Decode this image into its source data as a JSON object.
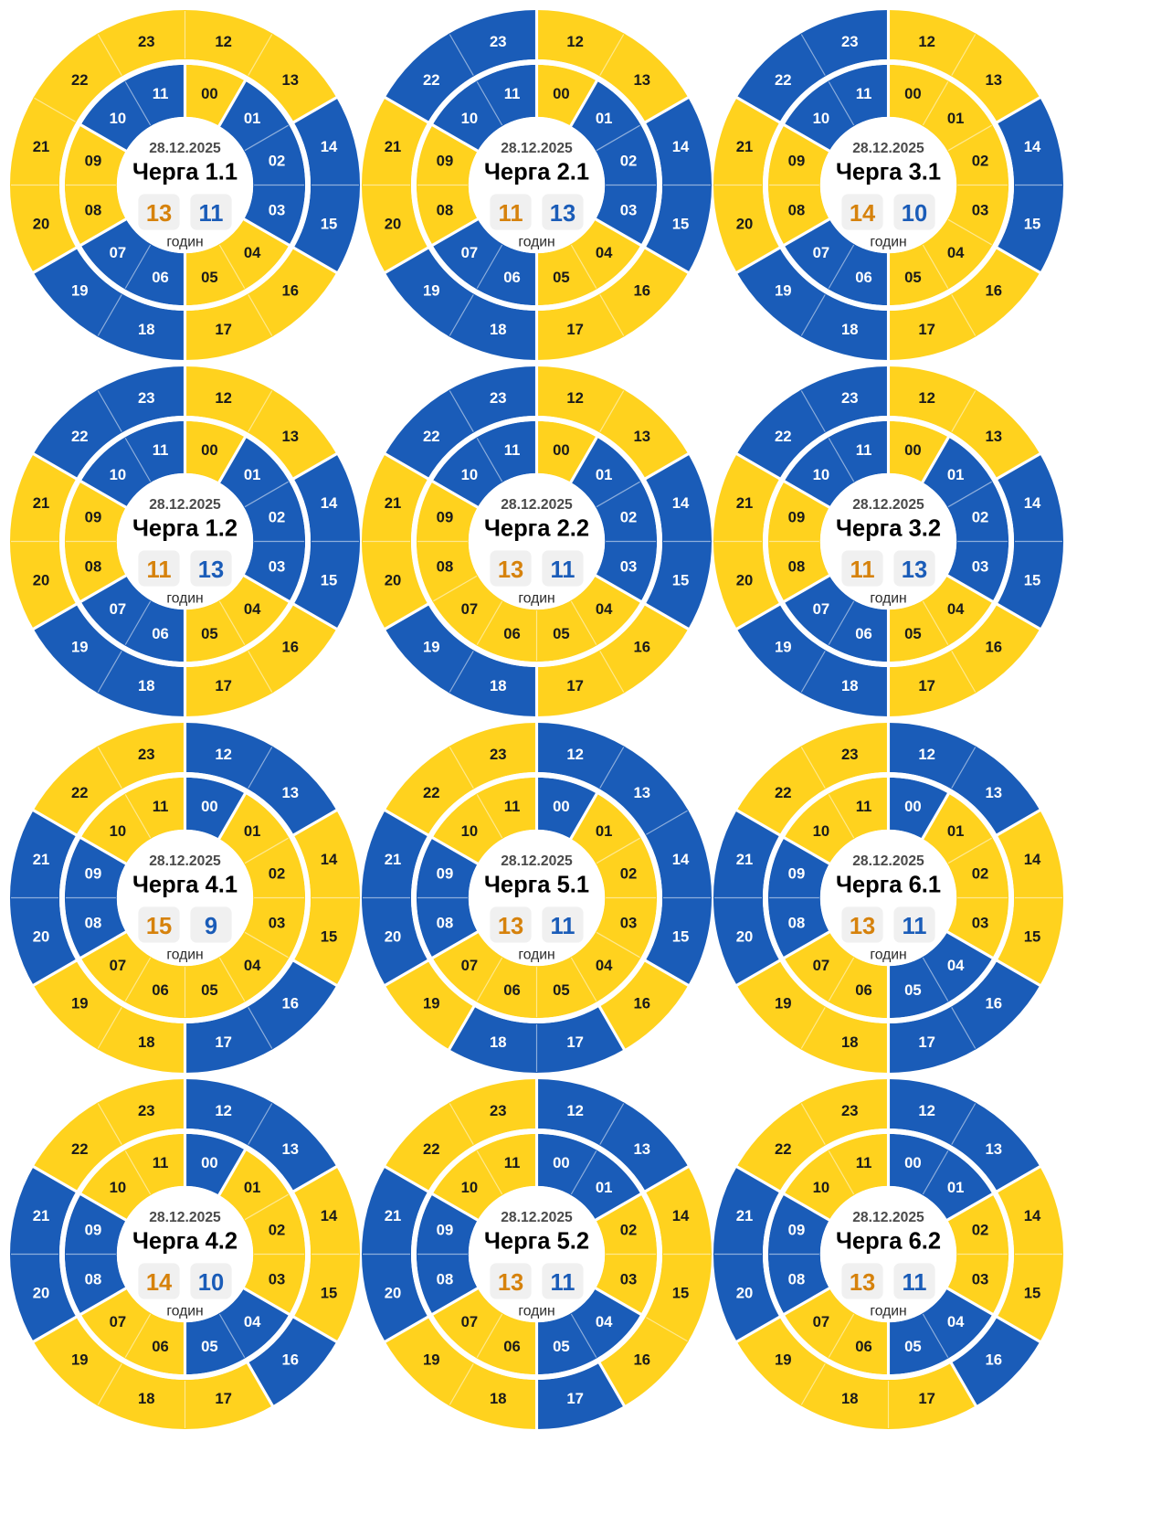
{
  "shared": {
    "date": "28.12.2025",
    "hours_word": "годин"
  },
  "colors": {
    "yellow_segment": "#ffd21e",
    "blue_segment": "#1a5cb8",
    "label_on_yellow": "#1a1a1a",
    "label_on_blue": "#ffffff",
    "date_text": "#4a4a4a",
    "title_text": "#000000",
    "badge_background": "#f0f0f0",
    "yellow_count_text": "#d6820c",
    "blue_count_text": "#1a5cb8",
    "hours_word_text": "#2b2b2b",
    "divider_strong": "#ffffff",
    "divider_faint": "rgba(255,255,255,0.5)"
  },
  "chart_data": {
    "type": "pie",
    "subtype": "24h-ring-schedule-grid",
    "rings": {
      "inner_hours": "00-11",
      "outer_hours": "12-23"
    },
    "charts": [
      {
        "title": "Черга 1.1",
        "date": "28.12.2025",
        "yellow_hours": 13,
        "blue_hours": 11,
        "hours_word": "годин",
        "hours": [
          "yellow",
          "blue",
          "blue",
          "blue",
          "yellow",
          "yellow",
          "blue",
          "blue",
          "yellow",
          "yellow",
          "blue",
          "blue",
          "yellow",
          "yellow",
          "blue",
          "blue",
          "yellow",
          "yellow",
          "blue",
          "blue",
          "yellow",
          "yellow",
          "yellow",
          "yellow"
        ]
      },
      {
        "title": "Черга 2.1",
        "date": "28.12.2025",
        "yellow_hours": 11,
        "blue_hours": 13,
        "hours_word": "годин",
        "hours": [
          "yellow",
          "blue",
          "blue",
          "blue",
          "yellow",
          "yellow",
          "blue",
          "blue",
          "yellow",
          "yellow",
          "blue",
          "blue",
          "yellow",
          "yellow",
          "blue",
          "blue",
          "yellow",
          "yellow",
          "blue",
          "blue",
          "yellow",
          "yellow",
          "blue",
          "blue"
        ]
      },
      {
        "title": "Черга 3.1",
        "date": "28.12.2025",
        "yellow_hours": 14,
        "blue_hours": 10,
        "hours_word": "годин",
        "hours": [
          "yellow",
          "yellow",
          "yellow",
          "yellow",
          "yellow",
          "yellow",
          "blue",
          "blue",
          "yellow",
          "yellow",
          "blue",
          "blue",
          "yellow",
          "yellow",
          "blue",
          "blue",
          "yellow",
          "yellow",
          "blue",
          "blue",
          "yellow",
          "yellow",
          "blue",
          "blue"
        ]
      },
      {
        "title": "Черга 1.2",
        "date": "28.12.2025",
        "yellow_hours": 11,
        "blue_hours": 13,
        "hours_word": "годин",
        "hours": [
          "yellow",
          "blue",
          "blue",
          "blue",
          "yellow",
          "yellow",
          "blue",
          "blue",
          "yellow",
          "yellow",
          "blue",
          "blue",
          "yellow",
          "yellow",
          "blue",
          "blue",
          "yellow",
          "yellow",
          "blue",
          "blue",
          "yellow",
          "yellow",
          "blue",
          "blue"
        ]
      },
      {
        "title": "Черга 2.2",
        "date": "28.12.2025",
        "yellow_hours": 13,
        "blue_hours": 11,
        "hours_word": "годин",
        "hours": [
          "yellow",
          "blue",
          "blue",
          "blue",
          "yellow",
          "yellow",
          "yellow",
          "yellow",
          "yellow",
          "yellow",
          "blue",
          "blue",
          "yellow",
          "yellow",
          "blue",
          "blue",
          "yellow",
          "yellow",
          "blue",
          "blue",
          "yellow",
          "yellow",
          "blue",
          "blue"
        ]
      },
      {
        "title": "Черга 3.2",
        "date": "28.12.2025",
        "yellow_hours": 11,
        "blue_hours": 13,
        "hours_word": "годин",
        "hours": [
          "yellow",
          "blue",
          "blue",
          "blue",
          "yellow",
          "yellow",
          "blue",
          "blue",
          "yellow",
          "yellow",
          "blue",
          "blue",
          "yellow",
          "yellow",
          "blue",
          "blue",
          "yellow",
          "yellow",
          "blue",
          "blue",
          "yellow",
          "yellow",
          "blue",
          "blue"
        ]
      },
      {
        "title": "Черга 4.1",
        "date": "28.12.2025",
        "yellow_hours": 15,
        "blue_hours": 9,
        "hours_word": "годин",
        "hours": [
          "blue",
          "yellow",
          "yellow",
          "yellow",
          "yellow",
          "yellow",
          "yellow",
          "yellow",
          "blue",
          "blue",
          "yellow",
          "yellow",
          "blue",
          "blue",
          "yellow",
          "yellow",
          "blue",
          "blue",
          "yellow",
          "yellow",
          "blue",
          "blue",
          "yellow",
          "yellow"
        ]
      },
      {
        "title": "Черга 5.1",
        "date": "28.12.2025",
        "yellow_hours": 13,
        "blue_hours": 11,
        "hours_word": "годин",
        "hours": [
          "blue",
          "yellow",
          "yellow",
          "yellow",
          "yellow",
          "yellow",
          "yellow",
          "yellow",
          "blue",
          "blue",
          "yellow",
          "yellow",
          "blue",
          "blue",
          "blue",
          "blue",
          "yellow",
          "blue",
          "blue",
          "yellow",
          "blue",
          "blue",
          "yellow",
          "yellow"
        ]
      },
      {
        "title": "Черга 6.1",
        "date": "28.12.2025",
        "yellow_hours": 13,
        "blue_hours": 11,
        "hours_word": "годин",
        "hours": [
          "blue",
          "yellow",
          "yellow",
          "yellow",
          "blue",
          "blue",
          "yellow",
          "yellow",
          "blue",
          "blue",
          "yellow",
          "yellow",
          "blue",
          "blue",
          "yellow",
          "yellow",
          "blue",
          "blue",
          "yellow",
          "yellow",
          "blue",
          "blue",
          "yellow",
          "yellow"
        ]
      },
      {
        "title": "Черга 4.2",
        "date": "28.12.2025",
        "yellow_hours": 14,
        "blue_hours": 10,
        "hours_word": "годин",
        "hours": [
          "blue",
          "yellow",
          "yellow",
          "yellow",
          "blue",
          "blue",
          "yellow",
          "yellow",
          "blue",
          "blue",
          "yellow",
          "yellow",
          "blue",
          "blue",
          "yellow",
          "yellow",
          "blue",
          "yellow",
          "yellow",
          "yellow",
          "blue",
          "blue",
          "yellow",
          "yellow"
        ]
      },
      {
        "title": "Черга 5.2",
        "date": "28.12.2025",
        "yellow_hours": 13,
        "blue_hours": 11,
        "hours_word": "годин",
        "hours": [
          "blue",
          "blue",
          "yellow",
          "yellow",
          "blue",
          "blue",
          "yellow",
          "yellow",
          "blue",
          "blue",
          "yellow",
          "yellow",
          "blue",
          "blue",
          "yellow",
          "yellow",
          "yellow",
          "blue",
          "yellow",
          "yellow",
          "blue",
          "blue",
          "yellow",
          "yellow"
        ]
      },
      {
        "title": "Черга 6.2",
        "date": "28.12.2025",
        "yellow_hours": 13,
        "blue_hours": 11,
        "hours_word": "годин",
        "hours": [
          "blue",
          "blue",
          "yellow",
          "yellow",
          "blue",
          "blue",
          "yellow",
          "yellow",
          "blue",
          "blue",
          "yellow",
          "yellow",
          "blue",
          "blue",
          "yellow",
          "yellow",
          "blue",
          "yellow",
          "yellow",
          "yellow",
          "blue",
          "blue",
          "yellow",
          "yellow"
        ]
      }
    ]
  }
}
